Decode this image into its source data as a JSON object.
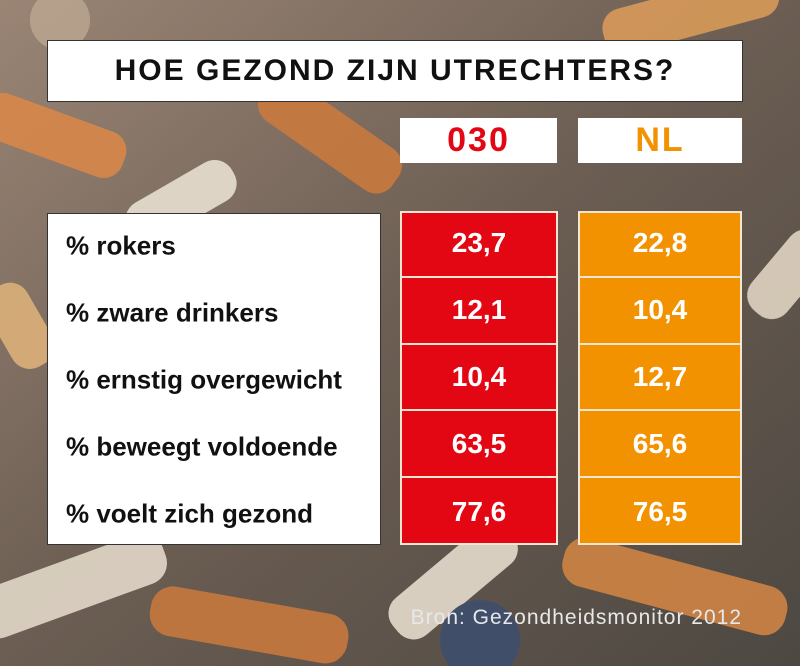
{
  "title": "HOE GEZOND ZIJN UTRECHTERS?",
  "table": {
    "columns": [
      "030",
      "NL"
    ],
    "rows": [
      [
        "% rokers",
        "23,7",
        "22,8"
      ],
      [
        "% zware drinkers",
        "12,1",
        "10,4"
      ],
      [
        "% ernstig overgewicht",
        "10,4",
        "12,7"
      ],
      [
        "% beweegt voldoende",
        "63,5",
        "65,6"
      ],
      [
        "% voelt zich gezond",
        "77,6",
        "76,5"
      ]
    ]
  },
  "source": "Bron: Gezondheidsmonitor 2012"
}
